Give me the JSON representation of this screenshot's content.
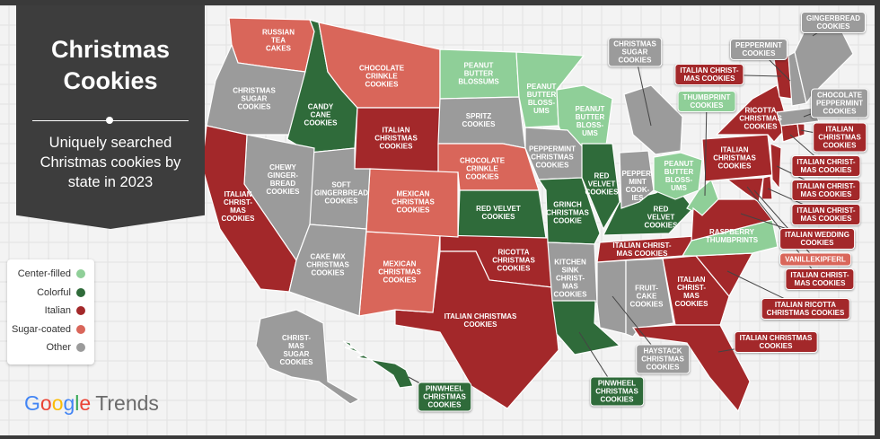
{
  "title": "Christmas Cookies",
  "subtitle": "Uniquely searched Christmas cookies by state in 2023",
  "legend": [
    {
      "label": "Center-filled",
      "color": "#8fcf98"
    },
    {
      "label": "Colorful",
      "color": "#2f6b3a"
    },
    {
      "label": "Italian",
      "color": "#a3282a"
    },
    {
      "label": "Sugar-coated",
      "color": "#d9665a"
    },
    {
      "label": "Other",
      "color": "#9b9b9b"
    }
  ],
  "states": [
    {
      "label": "RUSSIAN\nTEA\nCAKES",
      "category": 3
    },
    {
      "label": "CHRISTMAS\nSUGAR\nCOOKIES",
      "category": 4
    },
    {
      "label": "CANDY\nCANE\nCOOKIES",
      "category": 1
    },
    {
      "label": "CHOCOLATE\nCRINKLE\nCOOKIES",
      "category": 3
    },
    {
      "label": "ITALIAN\nCHRISTMAS\nCOOKIES",
      "category": 2
    },
    {
      "label": "PEANUT\nBUTTER\nBLOSSUMS",
      "category": 0
    },
    {
      "label": "SPRITZ\nCOOKIES",
      "category": 4
    },
    {
      "label": "CHOCOLATE\nCRINKLE\nCOOKIES",
      "category": 3
    },
    {
      "label": "RED VELVET\nCOOKIES",
      "category": 1
    },
    {
      "label": "RICOTTA\nCHRISTMAS\nCOOKIES",
      "category": 2
    },
    {
      "label": "ITALIAN CHRISTMAS\nCOOKIES",
      "category": 2
    },
    {
      "label": "MEXICAN\nCHRISTMAS\nCOOKIES",
      "category": 3
    },
    {
      "label": "MEXICAN\nCHRISTMAS\nCOOKIES",
      "category": 3
    },
    {
      "label": "SOFT\nGINGERBREAD\nCOOKIES",
      "category": 4
    },
    {
      "label": "CHEWY\nGINGER-\nBREAD\nCOOKIES",
      "category": 4
    },
    {
      "label": "ITALIAN\nCHRIST-\nMAS\nCOOKIES",
      "category": 2
    },
    {
      "label": "CAKE MIX\nCHRISTMAS\nCOOKIES",
      "category": 4
    },
    {
      "label": "PEANUT\nBUTTER\nBLOSS-\nUMS",
      "category": 0
    },
    {
      "label": "PEANUT\nBUTTER\nBLOSS-\nUMS",
      "category": 0
    },
    {
      "label": "PEPPERMINT\nCHRISTMAS\nCOOKIES",
      "category": 4
    },
    {
      "label": "GRINCH\nCHRISTMAS\nCOOKIE",
      "category": 1
    },
    {
      "label": "RED\nVELVET\nCOOKIES",
      "category": 1
    },
    {
      "label": "KITCHEN\nSINK\nCHRIST-\nMAS\nCOOKIES",
      "category": 4
    },
    {
      "category": 1
    },
    {
      "category": 4
    },
    {
      "label": "FRUIT-\nCAKE\nCOOKIES",
      "category": 4
    },
    {
      "label": "ITALIAN\nCHRIST-\nMAS\nCOOKIES",
      "category": 2
    },
    {
      "category": 2
    },
    {
      "category": 2
    },
    {
      "label": "RASPBERRY\nTHUMBPRINTS",
      "category": 0
    },
    {
      "label": "ITALIAN CHRIST-\nMAS COOKIES",
      "category": 2
    },
    {
      "label": "RED\nVELVET\nCOOKIES",
      "category": 1
    },
    {
      "label": "PEPPER-\nMINT\nCOOK-\nIES",
      "category": 4
    },
    {
      "category": 4
    },
    {
      "label": "PEANUT\nBUTTER\nBLOSS-\nUMS",
      "category": 0
    },
    {
      "category": 0
    },
    {
      "category": 2
    },
    {
      "label": "ITALIAN\nCHRISTMAS\nCOOKIES",
      "category": 2
    },
    {
      "label": "RICOTTA\nCHRISTMAS\nCOOKIES",
      "category": 2
    },
    {
      "category": 2
    },
    {
      "category": 2
    },
    {
      "category": 2
    },
    {
      "category": 2
    },
    {
      "category": 2
    },
    {
      "category": 4
    },
    {
      "category": 2
    },
    {
      "category": 4
    },
    {
      "category": 4
    },
    {
      "label": "CHRIST-\nMAS\nSUGAR\nCOOKIES",
      "category": 4
    },
    {
      "category": 1
    }
  ],
  "callouts": [
    {
      "label": "CHRISTMAS\nSUGAR\nCOOKIES",
      "category": 4
    },
    {
      "label": "PEPPERMINT\nCOOKIES",
      "category": 4
    },
    {
      "label": "GINGERBREAD\nCOOKIES",
      "category": 4
    },
    {
      "label": "ITALIAN CHRIST-\nMAS COOKIES",
      "category": 2
    },
    {
      "label": "THUMBPRINT\nCOOKIES",
      "category": 0
    },
    {
      "label": "CHOCOLATE\nPEPPERMINT\nCOOKIES",
      "category": 4
    },
    {
      "label": "ITALIAN\nCHRISTMAS\nCOOKIES",
      "category": 2
    },
    {
      "label": "ITALIAN CHRIST-\nMAS COOKIES",
      "category": 2
    },
    {
      "label": "ITALIAN CHRIST-\nMAS COOKIES",
      "category": 2
    },
    {
      "label": "ITALIAN CHRIST-\nMAS COOKIES",
      "category": 2
    },
    {
      "label": "ITALIAN WEDDING\nCOOKIES",
      "category": 2
    },
    {
      "label": "VANILLEKIPFERL",
      "category": 3
    },
    {
      "label": "ITALIAN CHRIST-\nMAS COOKIES",
      "category": 2
    },
    {
      "label": "ITALIAN RICOTTA\nCHRISTMAS COOKIES",
      "category": 2
    },
    {
      "label": "ITALIAN CHRISTMAS\nCOOKIES",
      "category": 2
    },
    {
      "label": "HAYSTACK\nCHRISTMAS\nCOOKIES",
      "category": 4
    },
    {
      "label": "PINWHEEL\nCHRISTMAS\nCOOKIES",
      "category": 1
    },
    {
      "label": "PINWHEEL\nCHRISTMAS\nCOOKIES",
      "category": 1
    }
  ],
  "brand": {
    "google": "Google",
    "trends": "Trends"
  }
}
